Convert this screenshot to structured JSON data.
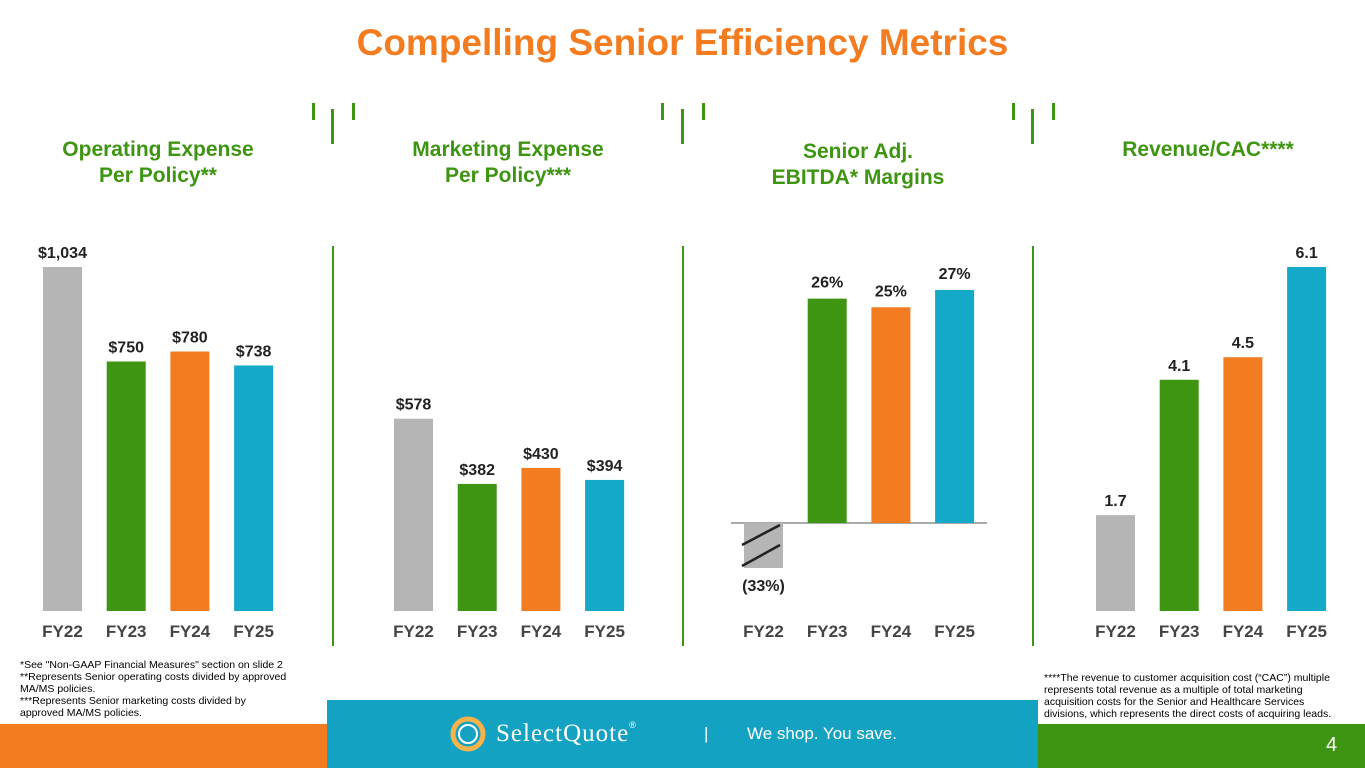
{
  "title": "Compelling Senior Efficiency Metrics",
  "colors": {
    "gray": "#B5B5B5",
    "green": "#3E9511",
    "orange": "#F47C20",
    "teal": "#14A9C9"
  },
  "chart_data": [
    {
      "type": "bar",
      "title": "Operating Expense Per Policy**",
      "categories": [
        "FY22",
        "FY23",
        "FY24",
        "FY25"
      ],
      "values": [
        1034,
        750,
        780,
        738
      ],
      "labels": [
        "$1,034",
        "$750",
        "$780",
        "$738"
      ],
      "ylim": [
        0,
        1034
      ]
    },
    {
      "type": "bar",
      "title": "Marketing Expense Per Policy***",
      "categories": [
        "FY22",
        "FY23",
        "FY24",
        "FY25"
      ],
      "values": [
        578,
        382,
        430,
        394
      ],
      "labels": [
        "$578",
        "$382",
        "$430",
        "$394"
      ],
      "ylim": [
        0,
        1034
      ]
    },
    {
      "type": "bar",
      "title": "Senior Adj. EBITDA* Margins",
      "categories": [
        "FY22",
        "FY23",
        "FY24",
        "FY25"
      ],
      "values": [
        -33,
        26,
        25,
        27
      ],
      "labels": [
        "(33%)",
        "26%",
        "25%",
        "27%"
      ],
      "axis_break_on_negative": true
    },
    {
      "type": "bar",
      "title": "Revenue/CAC****",
      "categories": [
        "FY22",
        "FY23",
        "FY24",
        "FY25"
      ],
      "values": [
        1.7,
        4.1,
        4.5,
        6.1
      ],
      "labels": [
        "1.7",
        "4.1",
        "4.5",
        "6.1"
      ],
      "ylim": [
        0,
        6.1
      ]
    }
  ],
  "panel_titles": [
    [
      "Operating Expense",
      "Per Policy**"
    ],
    [
      "Marketing Expense",
      "Per Policy***"
    ],
    [
      "Senior Adj.",
      "EBITDA* Margins"
    ],
    [
      "Revenue/CAC****"
    ]
  ],
  "footnotes_left": [
    "*See \"Non-GAAP Financial Measures\" section on slide 2",
    "**Represents Senior operating costs divided by approved",
    "MA/MS policies.",
    "***Represents Senior marketing costs divided by",
    "approved MA/MS policies."
  ],
  "footnotes_right": [
    "****The revenue to customer acquisition cost (“CAC”) multiple",
    "represents total revenue as a multiple of total marketing",
    "acquisition costs for the Senior and Healthcare Services",
    "divisions, which represents the direct costs of acquiring leads."
  ],
  "footer": {
    "brand": "SelectQuote",
    "brand_mark": "®",
    "separator": "|",
    "tagline": "We shop. You save.",
    "page_number": "4"
  }
}
